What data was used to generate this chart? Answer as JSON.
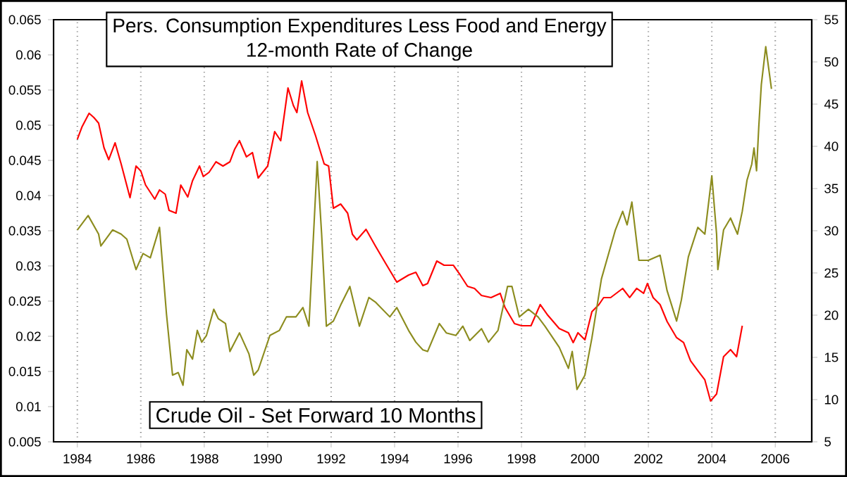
{
  "chart_data": {
    "type": "line",
    "title": "Pers. Consumption Expenditures Less Food and Energy",
    "subtitle": "12-month Rate of Change",
    "annotations": [
      "Crude Oil - Set Forward 10 Months"
    ],
    "xlim": [
      1983.25,
      2007.15
    ],
    "xticks": [
      1984,
      1986,
      1988,
      1990,
      1992,
      1994,
      1996,
      1998,
      2000,
      2002,
      2004,
      2006
    ],
    "ylim": [
      0.005,
      0.065
    ],
    "yticks": [
      0.005,
      0.01,
      0.015,
      0.02,
      0.025,
      0.03,
      0.035,
      0.04,
      0.045,
      0.05,
      0.055,
      0.06,
      0.065
    ],
    "y2lim": [
      5,
      55
    ],
    "y2ticks": [
      5,
      10,
      15,
      20,
      25,
      30,
      35,
      40,
      45,
      50,
      55
    ],
    "grid": "x",
    "series": [
      {
        "color": "#ff0000",
        "x": [
          1984.0,
          1984.15,
          1984.37,
          1984.52,
          1984.67,
          1984.84,
          1984.99,
          1985.19,
          1985.38,
          1985.66,
          1985.85,
          1986.0,
          1986.15,
          1986.44,
          1986.59,
          1986.77,
          1986.89,
          1987.11,
          1987.26,
          1987.48,
          1987.63,
          1987.85,
          1987.97,
          1988.15,
          1988.37,
          1988.59,
          1988.81,
          1988.96,
          1989.11,
          1989.33,
          1989.52,
          1989.7,
          1990.0,
          1990.22,
          1990.41,
          1990.64,
          1990.81,
          1990.92,
          1991.07,
          1991.26,
          1991.51,
          1991.78,
          1991.92,
          1992.07,
          1992.3,
          1992.52,
          1992.67,
          1992.81,
          1993.1,
          1993.4,
          1993.7,
          1994.07,
          1994.44,
          1994.67,
          1994.89,
          1995.04,
          1995.33,
          1995.56,
          1995.85,
          1996.07,
          1996.3,
          1996.52,
          1996.74,
          1997.04,
          1997.33,
          1997.48,
          1997.78,
          1998.0,
          1998.3,
          1998.59,
          1998.81,
          1999.19,
          1999.48,
          1999.63,
          1999.78,
          2000.0,
          2000.22,
          2000.44,
          2000.59,
          2000.81,
          2001.19,
          2001.41,
          2001.63,
          2001.85,
          2001.97,
          2002.15,
          2002.37,
          2002.59,
          2002.89,
          2003.11,
          2003.33,
          2003.56,
          2003.78,
          2003.96,
          2004.15,
          2004.37,
          2004.59,
          2004.78,
          2004.96
        ],
        "values": [
          0.048,
          0.0498,
          0.0517,
          0.0511,
          0.0503,
          0.0468,
          0.0451,
          0.0475,
          0.0445,
          0.0397,
          0.0442,
          0.0435,
          0.0415,
          0.0395,
          0.0408,
          0.0402,
          0.0379,
          0.0375,
          0.0415,
          0.0398,
          0.0421,
          0.0442,
          0.0427,
          0.0433,
          0.0448,
          0.0442,
          0.0448,
          0.0466,
          0.0478,
          0.0455,
          0.0461,
          0.0425,
          0.0442,
          0.0491,
          0.0478,
          0.0553,
          0.0528,
          0.0518,
          0.0563,
          0.0518,
          0.0485,
          0.0445,
          0.0442,
          0.0382,
          0.0388,
          0.0375,
          0.0345,
          0.0337,
          0.0352,
          0.0328,
          0.0305,
          0.0277,
          0.0287,
          0.0291,
          0.0272,
          0.0275,
          0.0307,
          0.0301,
          0.0301,
          0.0287,
          0.0271,
          0.0268,
          0.0258,
          0.0255,
          0.0261,
          0.0241,
          0.0218,
          0.0215,
          0.0215,
          0.0245,
          0.0231,
          0.0211,
          0.0205,
          0.0191,
          0.0205,
          0.0195,
          0.0235,
          0.0245,
          0.0255,
          0.0255,
          0.0268,
          0.0255,
          0.0268,
          0.0261,
          0.0275,
          0.0255,
          0.0245,
          0.0221,
          0.0198,
          0.0191,
          0.0165,
          0.0151,
          0.0138,
          0.0108,
          0.0118,
          0.0171,
          0.0181,
          0.0171,
          0.0215
        ]
      },
      {
        "color": "#8c8c1e",
        "axis": "y2",
        "x": [
          1984.0,
          1984.34,
          1984.67,
          1984.74,
          1985.11,
          1985.38,
          1985.56,
          1985.85,
          1986.07,
          1986.3,
          1986.59,
          1986.81,
          1987.0,
          1987.18,
          1987.33,
          1987.45,
          1987.63,
          1987.78,
          1987.92,
          1988.07,
          1988.3,
          1988.44,
          1988.67,
          1988.81,
          1989.11,
          1989.41,
          1989.56,
          1989.7,
          1990.07,
          1990.37,
          1990.59,
          1990.89,
          1991.11,
          1991.3,
          1991.56,
          1991.7,
          1991.85,
          1992.07,
          1992.3,
          1992.59,
          1992.89,
          1993.19,
          1993.41,
          1993.85,
          1994.07,
          1994.44,
          1994.67,
          1994.89,
          1995.04,
          1995.41,
          1995.63,
          1995.93,
          1996.15,
          1996.37,
          1996.74,
          1996.96,
          1997.26,
          1997.56,
          1997.7,
          1997.93,
          1998.22,
          1998.52,
          1998.74,
          1999.19,
          1999.48,
          1999.6,
          1999.75,
          2000.0,
          2000.22,
          2000.52,
          2000.96,
          2001.19,
          2001.33,
          2001.48,
          2001.7,
          2002.0,
          2002.37,
          2002.59,
          2002.89,
          2003.04,
          2003.26,
          2003.56,
          2003.78,
          2004.0,
          2004.15,
          2004.19,
          2004.37,
          2004.59,
          2004.81,
          2004.96,
          2005.11,
          2005.26,
          2005.33,
          2005.41,
          2005.48,
          2005.56,
          2005.7,
          2005.88
        ],
        "values": [
          30.1,
          31.8,
          29.6,
          28.2,
          30.1,
          29.6,
          29.0,
          25.4,
          27.3,
          26.8,
          30.4,
          20.1,
          12.9,
          13.2,
          11.7,
          15.9,
          14.8,
          18.2,
          16.8,
          17.6,
          20.7,
          19.6,
          19.0,
          15.7,
          17.9,
          15.4,
          12.9,
          13.5,
          17.6,
          18.2,
          19.8,
          19.8,
          20.9,
          18.7,
          38.2,
          29.6,
          18.7,
          19.3,
          21.2,
          23.4,
          18.7,
          22.1,
          21.5,
          19.8,
          20.9,
          18.2,
          16.8,
          15.9,
          15.7,
          19.0,
          17.9,
          17.6,
          18.7,
          17.0,
          18.4,
          16.8,
          18.2,
          23.4,
          23.4,
          19.8,
          20.7,
          19.8,
          18.7,
          16.2,
          13.7,
          15.7,
          11.2,
          12.9,
          17.3,
          24.3,
          30.1,
          32.3,
          30.7,
          33.4,
          26.5,
          26.5,
          27.1,
          22.9,
          19.3,
          21.8,
          26.9,
          30.4,
          29.6,
          36.5,
          29.6,
          25.4,
          30.1,
          31.5,
          29.6,
          32.3,
          36.0,
          37.9,
          39.8,
          37.1,
          42.3,
          47.3,
          51.8,
          46.8
        ]
      }
    ]
  }
}
